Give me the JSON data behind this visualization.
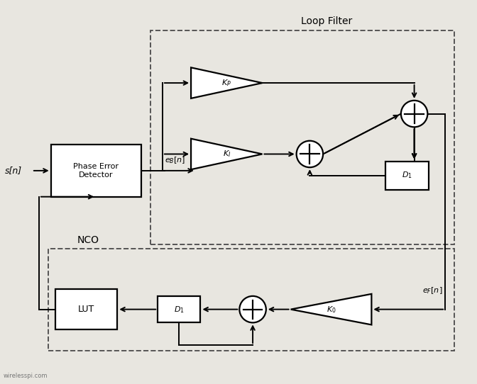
{
  "fig_width": 6.72,
  "fig_height": 5.42,
  "dpi": 100,
  "bg_color": "#e8e6e0",
  "block_color": "#ffffff",
  "block_edge_color": "#000000",
  "line_color": "#000000",
  "dashed_box_color": "#555555",
  "title_Loop_Filter": "Loop Filter",
  "title_NCO": "NCO",
  "label_sn": "s[n]",
  "label_ebn": "$e_B[n]$",
  "label_efn": "$e_F[n]$",
  "label_Kp": "$K_P$",
  "label_Ki": "$K_I$",
  "label_K0": "$K_0$",
  "label_D1_top": "$D_1$",
  "label_D1_bot": "$D_1$",
  "label_phase": "Phase Error\nDetector",
  "label_LUT": "LUT",
  "watermark": "wirelesspi.com"
}
